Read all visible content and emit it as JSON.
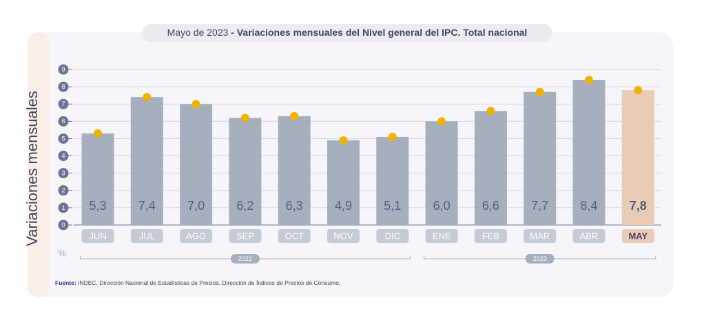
{
  "chart_data": {
    "type": "bar",
    "subtitle": "Mayo de 2023",
    "title": "- Variaciones mensuales del Nivel general del IPC. Total nacional",
    "y_label": "Variaciones mensuales",
    "y_unit": "%",
    "categories": [
      "JUN",
      "JUL",
      "AGO",
      "SEP",
      "OCT",
      "NOV",
      "DIC",
      "ENE",
      "FEB",
      "MAR",
      "ABR",
      "MAY"
    ],
    "values": [
      5.3,
      7.4,
      7.0,
      6.2,
      6.3,
      4.9,
      5.1,
      6.0,
      6.6,
      7.7,
      8.4,
      7.8
    ],
    "value_labels": [
      "5,3",
      "7,4",
      "7,0",
      "6,2",
      "6,3",
      "4,9",
      "5,1",
      "6,0",
      "6,6",
      "7,7",
      "8,4",
      "7,8"
    ],
    "colors": [
      "#a6afbe",
      "#a6afbe",
      "#a6afbe",
      "#a6afbe",
      "#a6afbe",
      "#a6afbe",
      "#a6afbe",
      "#a6afbe",
      "#a6afbe",
      "#a6afbe",
      "#a6afbe",
      "#e9cbb6"
    ],
    "point_color": "#f0b400",
    "ylim": [
      0,
      9
    ],
    "yticks": [
      0,
      1,
      2,
      3,
      4,
      5,
      6,
      7,
      8,
      9
    ],
    "grid": true,
    "groups": [
      {
        "label": "2022",
        "start": "JUN",
        "end": "DIC"
      },
      {
        "label": "2023",
        "start": "ENE",
        "end": "MAY"
      }
    ],
    "source_label": "Fuente:",
    "source": "INDEC, Dirección Nacional de Estadísticas de Precios. Dirección de Índices de Precios de Consumo."
  }
}
